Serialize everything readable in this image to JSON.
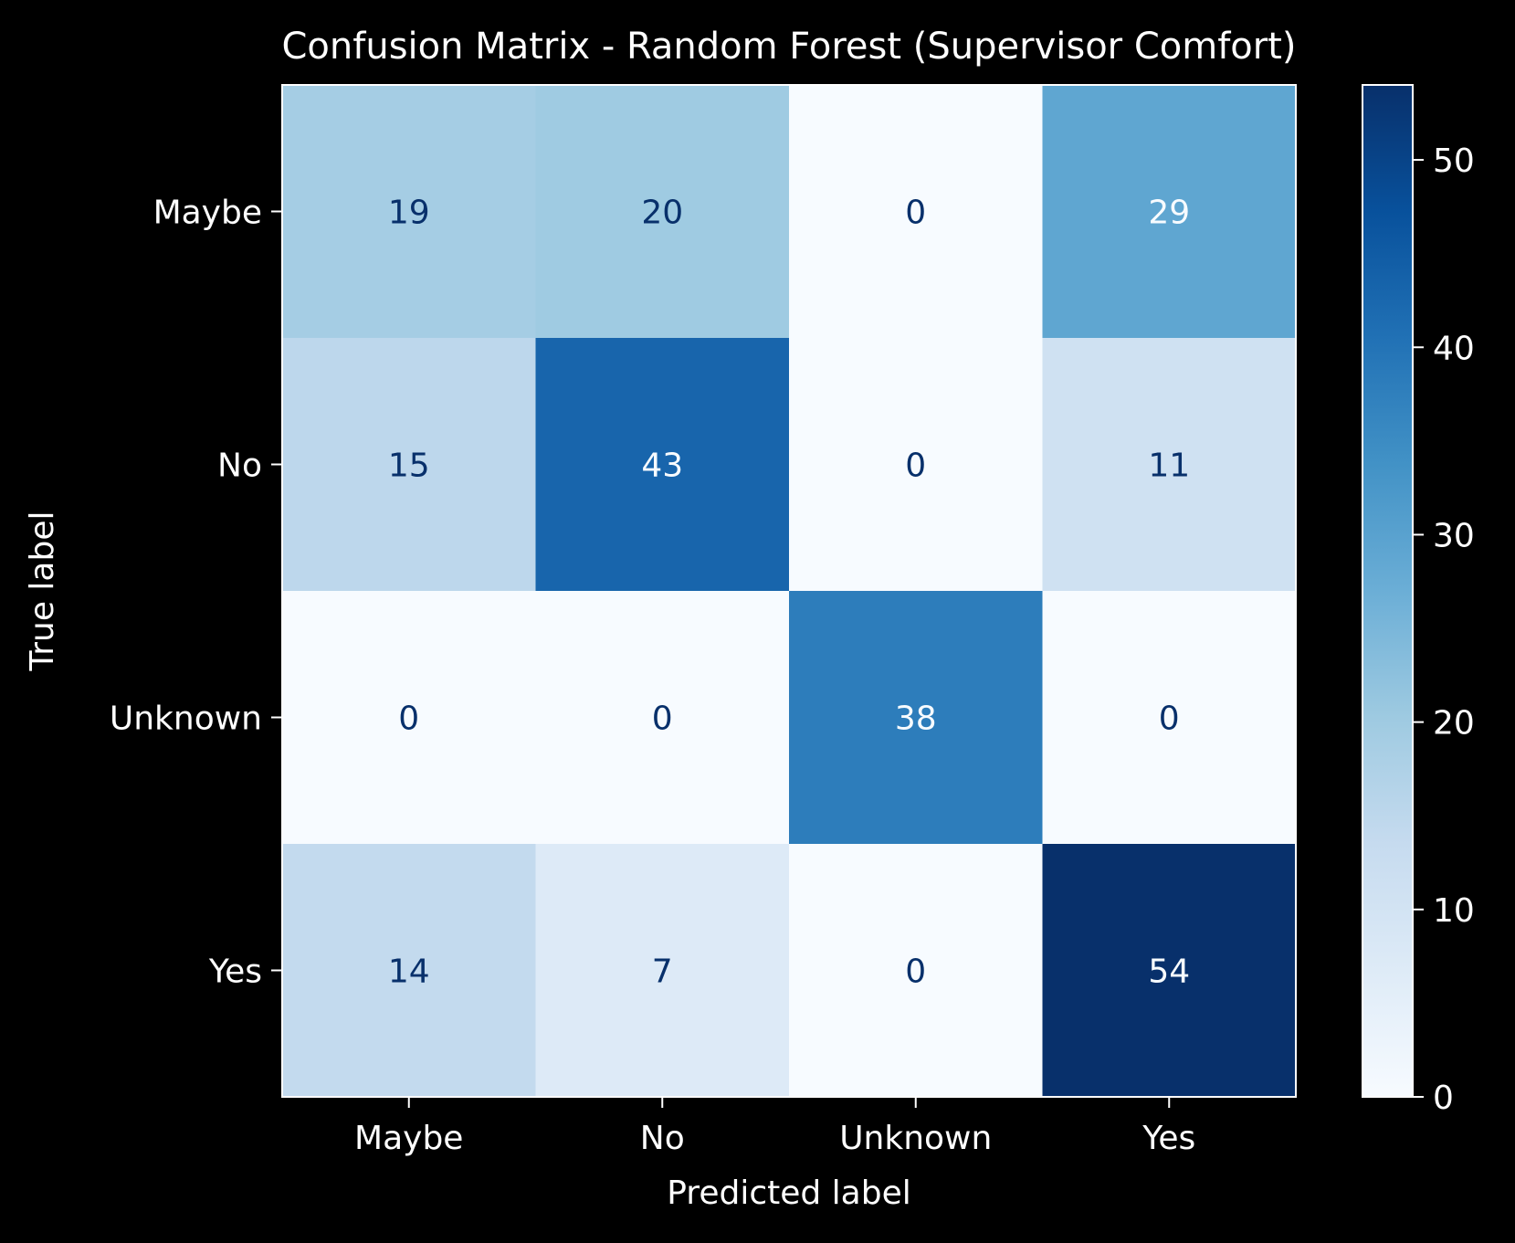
{
  "chart_data": {
    "type": "heatmap",
    "title": "Confusion Matrix - Random Forest (Supervisor Comfort)",
    "xlabel": "Predicted label",
    "ylabel": "True label",
    "x_categories": [
      "Maybe",
      "No",
      "Unknown",
      "Yes"
    ],
    "y_categories": [
      "Maybe",
      "No",
      "Unknown",
      "Yes"
    ],
    "values": [
      [
        19,
        20,
        0,
        29
      ],
      [
        15,
        43,
        0,
        11
      ],
      [
        0,
        0,
        38,
        0
      ],
      [
        14,
        7,
        0,
        54
      ]
    ],
    "colormap": "Blues",
    "colorbar": {
      "range": [
        0,
        54
      ],
      "ticks": [
        0,
        10,
        20,
        30,
        40,
        50
      ]
    },
    "colors": {
      "background": "#000000",
      "text": "#ffffff",
      "cell_text_light": "#f7fbff",
      "cell_text_dark": "#08306b"
    }
  }
}
